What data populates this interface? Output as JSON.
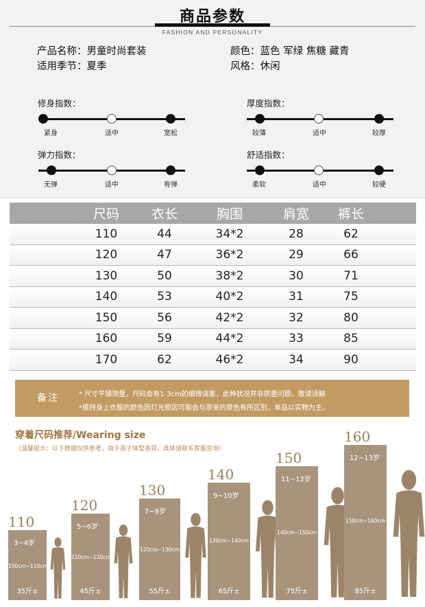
{
  "header": {
    "title": "商品参数",
    "subtitle": "FASHION AND PERSONALITY",
    "product_name": "产品名称：男童时尚套装",
    "season": "适用季节：夏季",
    "color": "颜色：蓝色 军绿  焦糖  藏青",
    "style": "风格：休闲"
  },
  "indices": [
    {
      "label": "修身指数：",
      "options": [
        "紧身",
        "适中",
        "宽松"
      ],
      "selected": 1
    },
    {
      "label": "厚度指数：",
      "options": [
        "较薄",
        "适中",
        "较厚"
      ],
      "selected": 1
    },
    {
      "label": "弹力指数：",
      "options": [
        "无弹",
        "适中",
        "有弹"
      ],
      "selected": 1
    },
    {
      "label": "舒适指数：",
      "options": [
        "柔软",
        "适中",
        "较硬"
      ],
      "selected": 1
    }
  ],
  "size_table": {
    "headers": [
      "尺码",
      "衣长",
      "胸围",
      "肩宽",
      "裤长"
    ],
    "rows": [
      [
        "110",
        "44",
        "34*2",
        "28",
        "62"
      ],
      [
        "120",
        "47",
        "36*2",
        "29",
        "66"
      ],
      [
        "130",
        "50",
        "38*2",
        "30",
        "71"
      ],
      [
        "140",
        "53",
        "40*2",
        "31",
        "75"
      ],
      [
        "150",
        "56",
        "42*2",
        "32",
        "80"
      ],
      [
        "160",
        "59",
        "44*2",
        "33",
        "85"
      ],
      [
        "170",
        "62",
        "46*2",
        "34",
        "90"
      ]
    ]
  },
  "note": {
    "title": "备注",
    "line1": "* 尺寸平铺测量，尺码会有1-3cm的细微误差，此种状况并非质量问题，敬请谅解",
    "line2": "*模特身上衣服的颜色因灯光原因可能会与原来的原色有所区别，单品以实物为主。"
  },
  "wearing": {
    "title": "穿着尺码推荐/Wearing size",
    "tip": "（温馨提示：以下数据仅供参考，由于孩子体型各异，具体请联系客服咨询）",
    "columns": [
      {
        "size": "110",
        "age": "3~4岁",
        "height": "100cm~110cm",
        "weight": "35斤±"
      },
      {
        "size": "120",
        "age": "5~6岁",
        "height": "110cm~120cm",
        "weight": "45斤±"
      },
      {
        "size": "130",
        "age": "7~8岁",
        "height": "120cm~130cm",
        "weight": "55斤±"
      },
      {
        "size": "140",
        "age": "9~10岁",
        "height": "130cm~140cm",
        "weight": "65斤±"
      },
      {
        "size": "150",
        "age": "11~12岁",
        "height": "140cm~150cm",
        "weight": "75斤±"
      },
      {
        "size": "160",
        "age": "12~13岁",
        "height": "150cm~160cm",
        "weight": "85斤±"
      }
    ]
  },
  "colors": {
    "accent": "#c29b62",
    "column_box": "#a8947c",
    "silhouette": "#9c8468",
    "table_header": "#a7a7a7"
  }
}
